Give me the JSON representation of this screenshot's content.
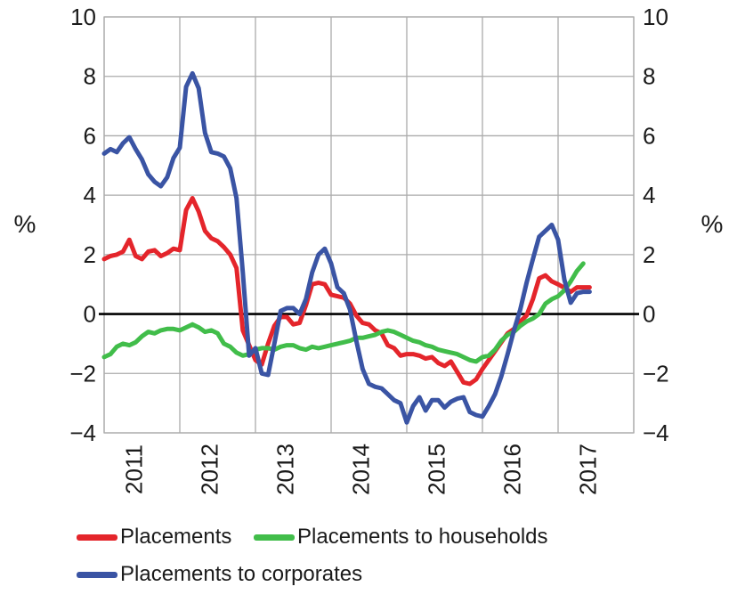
{
  "chart_data": {
    "type": "line",
    "title": "",
    "ylabel_left": "%",
    "ylabel_right": "%",
    "x_start_year": 2010.5,
    "x_step_years": 0.0833333,
    "xlim_years": [
      2010.5,
      2017.5
    ],
    "ylim": [
      -4,
      10
    ],
    "grid": true,
    "legend_position": "bottom-left",
    "x_tick_labels": [
      "2011",
      "2012",
      "2013",
      "2014",
      "2015",
      "2016",
      "2017"
    ],
    "y_tick_values": [
      10,
      8,
      6,
      4,
      2,
      0,
      -2,
      -4
    ],
    "y_tick_labels": [
      "10",
      "8",
      "6",
      "4",
      "2",
      "0",
      "−2",
      "−4"
    ],
    "series": [
      {
        "name": "Placements",
        "color": "#e4252b",
        "values": [
          1.85,
          1.95,
          2.0,
          2.1,
          2.5,
          1.95,
          1.85,
          2.1,
          2.15,
          1.95,
          2.05,
          2.2,
          2.15,
          3.5,
          3.9,
          3.45,
          2.8,
          2.55,
          2.45,
          2.25,
          2.0,
          1.55,
          -0.55,
          -1.05,
          -1.55,
          -1.7,
          -1.0,
          -0.4,
          -0.1,
          -0.1,
          -0.35,
          -0.3,
          0.3,
          1.0,
          1.05,
          1.0,
          0.65,
          0.6,
          0.55,
          0.35,
          -0.05,
          -0.3,
          -0.35,
          -0.55,
          -0.65,
          -1.05,
          -1.15,
          -1.4,
          -1.35,
          -1.35,
          -1.4,
          -1.5,
          -1.45,
          -1.65,
          -1.75,
          -1.6,
          -1.95,
          -2.3,
          -2.35,
          -2.2,
          -1.85,
          -1.55,
          -1.25,
          -0.95,
          -0.65,
          -0.5,
          -0.25,
          -0.05,
          0.5,
          1.2,
          1.3,
          1.1,
          1.0,
          0.88,
          0.75,
          0.9,
          0.9,
          0.9
        ]
      },
      {
        "name": "Placements to households",
        "color": "#41bd4a",
        "values": [
          -1.45,
          -1.35,
          -1.1,
          -1.0,
          -1.05,
          -0.95,
          -0.75,
          -0.6,
          -0.65,
          -0.55,
          -0.5,
          -0.5,
          -0.55,
          -0.45,
          -0.35,
          -0.45,
          -0.6,
          -0.55,
          -0.65,
          -1.0,
          -1.1,
          -1.3,
          -1.4,
          -1.35,
          -1.2,
          -1.15,
          -1.15,
          -1.2,
          -1.1,
          -1.05,
          -1.05,
          -1.15,
          -1.2,
          -1.1,
          -1.15,
          -1.1,
          -1.05,
          -1.0,
          -0.95,
          -0.9,
          -0.8,
          -0.8,
          -0.75,
          -0.7,
          -0.6,
          -0.55,
          -0.6,
          -0.7,
          -0.8,
          -0.9,
          -0.95,
          -1.05,
          -1.1,
          -1.2,
          -1.25,
          -1.3,
          -1.35,
          -1.45,
          -1.55,
          -1.6,
          -1.45,
          -1.4,
          -1.2,
          -0.9,
          -0.7,
          -0.6,
          -0.4,
          -0.25,
          -0.15,
          0.0,
          0.35,
          0.5,
          0.6,
          0.8,
          1.1,
          1.45,
          1.7
        ]
      },
      {
        "name": "Placements to corporates",
        "color": "#3a54a4",
        "values": [
          5.4,
          5.55,
          5.45,
          5.75,
          5.95,
          5.55,
          5.2,
          4.7,
          4.45,
          4.3,
          4.6,
          5.25,
          5.6,
          7.65,
          8.1,
          7.6,
          6.1,
          5.45,
          5.4,
          5.3,
          4.9,
          3.9,
          1.4,
          -1.4,
          -1.15,
          -2.0,
          -2.05,
          -1.0,
          0.1,
          0.2,
          0.2,
          0.0,
          0.5,
          1.4,
          2.0,
          2.2,
          1.7,
          0.9,
          0.7,
          0.15,
          -0.9,
          -1.85,
          -2.35,
          -2.45,
          -2.5,
          -2.7,
          -2.9,
          -3.0,
          -3.65,
          -3.1,
          -2.8,
          -3.25,
          -2.9,
          -2.9,
          -3.15,
          -2.95,
          -2.85,
          -2.8,
          -3.3,
          -3.4,
          -3.45,
          -3.1,
          -2.7,
          -2.1,
          -1.35,
          -0.55,
          0.15,
          1.05,
          1.85,
          2.6,
          2.8,
          3.0,
          2.5,
          1.15,
          0.38,
          0.7,
          0.75,
          0.75
        ]
      }
    ]
  },
  "colors": {
    "grid": "#ababab",
    "zero_line": "#000000",
    "text": "#1b1b1b",
    "background": "#ffffff"
  }
}
